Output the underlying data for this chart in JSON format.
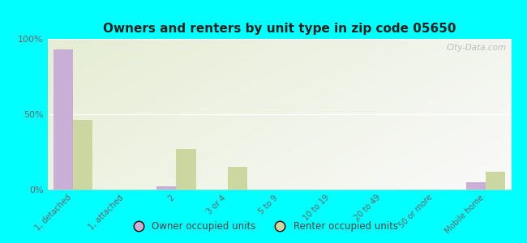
{
  "title": "Owners and renters by unit type in zip code 05650",
  "categories": [
    "1, detached",
    "1, attached",
    "2",
    "3 or 4",
    "5 to 9",
    "10 to 19",
    "20 to 49",
    "50 or more",
    "Mobile home"
  ],
  "owner_values": [
    93,
    0,
    2,
    0,
    0,
    0,
    0,
    0,
    5
  ],
  "renter_values": [
    46,
    0,
    27,
    15,
    0,
    0,
    0,
    0,
    12
  ],
  "owner_color": "#c9aed6",
  "renter_color": "#ccd6a0",
  "background_color": "#00ffff",
  "ylim": [
    0,
    100
  ],
  "yticks": [
    0,
    50,
    100
  ],
  "ytick_labels": [
    "0%",
    "50%",
    "100%"
  ],
  "watermark": "City-Data.com",
  "legend_owner": "Owner occupied units",
  "legend_renter": "Renter occupied units",
  "bar_width": 0.38
}
